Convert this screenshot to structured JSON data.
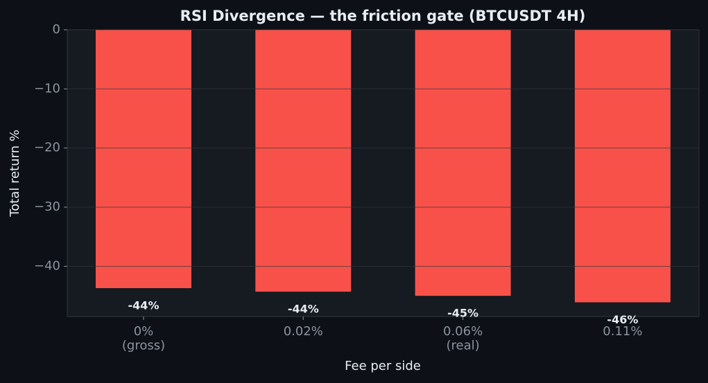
{
  "chart_data": {
    "type": "bar",
    "title": "RSI Divergence — the friction gate (BTCUSDT 4H)",
    "x_label": "Fee per side",
    "y_label": "Total return %",
    "categories": [
      "0%\n(gross)",
      "0.02%",
      "0.06%\n(real)",
      "0.11%"
    ],
    "values": [
      -43.7,
      -44.3,
      -45.0,
      -46.1
    ],
    "value_labels": [
      "-44%",
      "-44%",
      "-45%",
      "-46%"
    ],
    "color": "#f85149",
    "ylim": [
      -48.5,
      0
    ],
    "yticks": [
      0,
      {
        "value": -10,
        "label": "−10"
      },
      {
        "value": -20,
        "label": "−20"
      },
      {
        "value": -30,
        "label": "−30"
      },
      {
        "value": -40,
        "label": "−40"
      }
    ],
    "grid": true
  }
}
